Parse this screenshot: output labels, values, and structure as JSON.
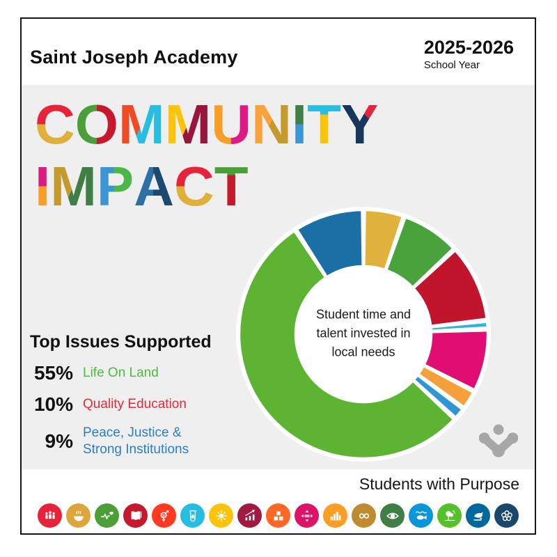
{
  "header": {
    "school_name": "Saint Joseph Academy",
    "school_year": "2025-2026",
    "school_year_label": "School Year"
  },
  "hero": {
    "line1_text": "COMMUNITY",
    "line2_text": "IMPACT",
    "letters1": [
      {
        "c": "C",
        "angle": "180deg",
        "split": "50%",
        "from": "#E5243B",
        "to": "#DFB03C"
      },
      {
        "c": "O",
        "angle": "90deg",
        "split": "50%",
        "from": "#4C9F38",
        "to": "#C5192D"
      },
      {
        "c": "M",
        "angle": "115deg",
        "split": "50%",
        "from": "#F04B23",
        "to": "#29BDE2"
      },
      {
        "c": "M",
        "angle": "115deg",
        "split": "50%",
        "from": "#FCC30B",
        "to": "#97173C"
      },
      {
        "c": "U",
        "angle": "90deg",
        "split": "50%",
        "from": "#F99D26",
        "to": "#E01A83"
      },
      {
        "c": "N",
        "angle": "115deg",
        "split": "48%",
        "from": "#F9A13A",
        "to": "#C49A2C"
      },
      {
        "c": "I",
        "angle": "180deg",
        "split": "50%",
        "from": "#3F7E44",
        "to": "#3B97D3"
      },
      {
        "c": "T",
        "angle": "180deg",
        "split": "34%",
        "from": "#29BDE2",
        "to": "#FCC30B"
      },
      {
        "c": "Y",
        "angle": "225deg",
        "split": "35%",
        "from": "#E5243B",
        "to": "#17365C"
      }
    ],
    "letters2": [
      {
        "c": "I",
        "angle": "180deg",
        "split": "50%",
        "from": "#E01A83",
        "to": "#F99D26"
      },
      {
        "c": "M",
        "angle": "115deg",
        "split": "50%",
        "from": "#C49A2C",
        "to": "#3F7E44"
      },
      {
        "c": "P",
        "angle": "90deg",
        "split": "46%",
        "from": "#3D96D4",
        "to": "#4CB748"
      },
      {
        "c": "A",
        "angle": "90deg",
        "split": "48%",
        "from": "#2E6FA4",
        "to": "#1B4A70"
      },
      {
        "c": "C",
        "angle": "180deg",
        "split": "50%",
        "from": "#E5243B",
        "to": "#DFB03C"
      },
      {
        "c": "T",
        "angle": "180deg",
        "split": "32%",
        "from": "#4C9F38",
        "to": "#C5192D"
      }
    ]
  },
  "chart_data": {
    "type": "donut",
    "title": "Student time and talent invested in local needs",
    "center_lines": [
      "Student time and",
      "talent invested in",
      "local needs"
    ],
    "start_angle_deg": 0,
    "gap_deg": 1.6,
    "outer_radius": 178,
    "inner_radius": 98,
    "legend_position": "left",
    "segments": [
      {
        "label": "",
        "value": 5,
        "color": "#E0B23D"
      },
      {
        "label": "",
        "value": 7.5,
        "color": "#49A23B"
      },
      {
        "label": "Quality Education",
        "value": 10,
        "color": "#C0152B"
      },
      {
        "label": "",
        "value": 0.7,
        "color": "#2FB3DC"
      },
      {
        "label": "",
        "value": 8,
        "color": "#E00E72"
      },
      {
        "label": "",
        "value": 2.2,
        "color": "#F5A03A"
      },
      {
        "label": "",
        "value": 1.3,
        "color": "#2E96D4"
      },
      {
        "label": "Life On Land",
        "value": 55,
        "color": "#5CB432"
      },
      {
        "label": "Peace, Justice & Strong Institutions",
        "value": 9,
        "color": "#1A6FA5"
      }
    ]
  },
  "issues": {
    "heading": "Top Issues Supported",
    "items": [
      {
        "pct": "55%",
        "label": "Life On Land",
        "color": "#4CBB3B"
      },
      {
        "pct": "10%",
        "label": "Quality Education",
        "color": "#E12A39"
      },
      {
        "pct": "9%",
        "label": "Peace, Justice & Strong Institutions",
        "color": "#2B7EC0"
      }
    ]
  },
  "footer": {
    "tagline": "Students with Purpose",
    "sdg_icons": [
      {
        "name": "no-poverty",
        "color": "#E5243B"
      },
      {
        "name": "zero-hunger",
        "color": "#DDA63A"
      },
      {
        "name": "good-health-and-well-being",
        "color": "#4C9F38"
      },
      {
        "name": "quality-education",
        "color": "#C5192D"
      },
      {
        "name": "gender-equality",
        "color": "#FF3A21"
      },
      {
        "name": "clean-water-and-sanitation",
        "color": "#26BDE2"
      },
      {
        "name": "affordable-and-clean-energy",
        "color": "#FCC30B"
      },
      {
        "name": "decent-work-and-economic-growth",
        "color": "#A21942"
      },
      {
        "name": "industry-innovation-and-infrastructure",
        "color": "#FD6925"
      },
      {
        "name": "reduced-inequalities",
        "color": "#DD1367"
      },
      {
        "name": "sustainable-cities-and-communities",
        "color": "#FD9D24"
      },
      {
        "name": "responsible-consumption-and-production",
        "color": "#BF8B2E"
      },
      {
        "name": "climate-action",
        "color": "#3F7E44"
      },
      {
        "name": "life-below-water",
        "color": "#0A97D9"
      },
      {
        "name": "life-on-land",
        "color": "#56C02B"
      },
      {
        "name": "peace-justice-and-strong-institutions",
        "color": "#00689D"
      },
      {
        "name": "partnerships-for-the-goals",
        "color": "#19486A"
      }
    ]
  },
  "brand": {
    "logo_color": "#A7A7A7",
    "panel_color": "#EFEFEF",
    "border_color": "#151515"
  }
}
